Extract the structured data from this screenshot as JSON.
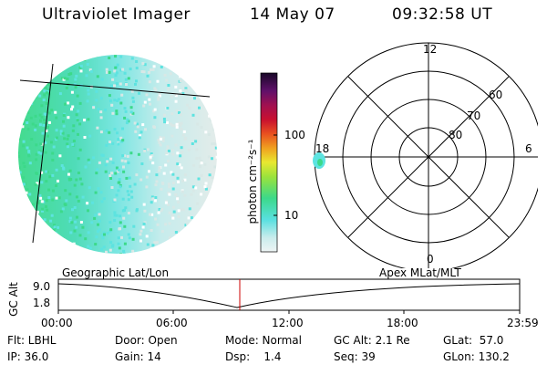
{
  "header": {
    "instrument": "Ultraviolet Imager",
    "date": "14 May 07",
    "time": "09:32:58 UT"
  },
  "colorbar": {
    "unit_label": "photon cm⁻²s⁻¹",
    "ticks": [
      "100",
      "10"
    ]
  },
  "polar_plot": {
    "mlt_labels": {
      "top": "12",
      "left": "18",
      "right": "6",
      "bottom": "0"
    },
    "lat_labels": [
      "60",
      "70",
      "80"
    ]
  },
  "timeline": {
    "ylabel": "GC Alt",
    "ytick_top": "9.0",
    "ytick_bottom": "1.8",
    "left_title": "Geographic Lat/Lon",
    "right_title": "Apex MLat/MLT",
    "time_ticks": [
      "00:00",
      "06:00",
      "12:00",
      "18:00",
      "23:59"
    ]
  },
  "info": {
    "flt": "Flt: LBHL",
    "ip": "IP: 36.0",
    "door": "Door: Open",
    "gain": "Gain: 14",
    "mode": "Mode: Normal",
    "dsp": "Dsp:    1.4",
    "gcalt": "GC Alt: 2.1 Re",
    "seq": "Seq: 39",
    "glat": "GLat:  57.0",
    "glon": "GLon: 130.2"
  },
  "colors": {
    "emission_green": "#3cd98a",
    "emission_cyan": "#5de3e0",
    "emission_pale": "#d8e8e6",
    "marker_red": "#cc0000"
  }
}
